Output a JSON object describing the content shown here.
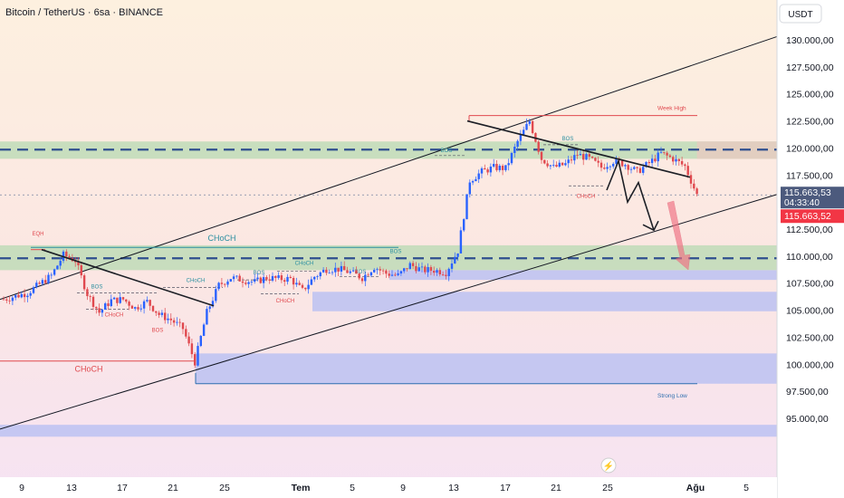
{
  "header": {
    "title": "Bitcoin / TetherUS · 6sa · BINANCE"
  },
  "axis": {
    "currency": "USDT",
    "price_ticks": [
      "130.000,00",
      "127.500,00",
      "125.000,00",
      "122.500,00",
      "120.000,00",
      "117.500,00",
      "115.000,00",
      "112.500,00",
      "110.000,00",
      "107.500,00",
      "105.000,00",
      "102.500,00",
      "100.000,00",
      "97.500,00",
      "95.000,00"
    ],
    "price_tick_values": [
      130000,
      127500,
      125000,
      122500,
      120000,
      117500,
      115000,
      112500,
      110000,
      107500,
      105000,
      102500,
      100000,
      97500,
      95000
    ],
    "date_ticks": [
      "9",
      "13",
      "17",
      "21",
      "25",
      "Tem",
      "5",
      "9",
      "13",
      "17",
      "21",
      "25",
      "Ağu",
      "5"
    ],
    "current_price": "115.663,53",
    "countdown": "04:33:40",
    "last_price_2": "115.663,52"
  },
  "annotations": {
    "week_high": "Week High",
    "strong_low": "Strong Low",
    "eqh": "EQH",
    "choch": "CHoCH",
    "bos": "BOS"
  },
  "colors": {
    "bull": "#2962ff",
    "bear": "#e0494f",
    "demand_zone": "#b8bff2",
    "supply_green": "#b7d9b1",
    "channel": "#131722",
    "arrow_pink": "#f06f82",
    "price_badge": "#f23645"
  },
  "chart_data": {
    "type": "candlestick",
    "title": "Bitcoin / TetherUS · 6sa · BINANCE",
    "y_unit": "USDT",
    "ylim": [
      93500,
      132000
    ],
    "x_ticks": [
      "9",
      "13",
      "17",
      "21",
      "25",
      "Tem",
      "5",
      "9",
      "13",
      "17",
      "21",
      "25",
      "Ağu",
      "5"
    ],
    "close_path": [
      [
        0,
        106000
      ],
      [
        4,
        106600
      ],
      [
        8,
        108200
      ],
      [
        10,
        110100
      ],
      [
        12,
        109600
      ],
      [
        14,
        106500
      ],
      [
        16,
        104800
      ],
      [
        18,
        105900
      ],
      [
        20,
        106000
      ],
      [
        22,
        105200
      ],
      [
        24,
        105800
      ],
      [
        26,
        104600
      ],
      [
        28,
        104100
      ],
      [
        30,
        103300
      ],
      [
        32,
        100200
      ],
      [
        34,
        104800
      ],
      [
        36,
        107300
      ],
      [
        38,
        108000
      ],
      [
        40,
        107800
      ],
      [
        42,
        107600
      ],
      [
        44,
        108000
      ],
      [
        46,
        107900
      ],
      [
        48,
        107900
      ],
      [
        50,
        106800
      ],
      [
        52,
        108100
      ],
      [
        54,
        108800
      ],
      [
        56,
        108800
      ],
      [
        58,
        108500
      ],
      [
        60,
        108000
      ],
      [
        62,
        109000
      ],
      [
        64,
        108400
      ],
      [
        66,
        108200
      ],
      [
        68,
        109200
      ],
      [
        70,
        108700
      ],
      [
        72,
        108700
      ],
      [
        74,
        108500
      ],
      [
        76,
        110500
      ],
      [
        78,
        117000
      ],
      [
        80,
        117800
      ],
      [
        82,
        118200
      ],
      [
        84,
        118100
      ],
      [
        86,
        120600
      ],
      [
        88,
        122500
      ],
      [
        90,
        119000
      ],
      [
        92,
        118200
      ],
      [
        94,
        118500
      ],
      [
        96,
        119400
      ],
      [
        98,
        119000
      ],
      [
        100,
        118200
      ],
      [
        102,
        118800
      ],
      [
        104,
        118500
      ],
      [
        106,
        117800
      ],
      [
        108,
        118600
      ],
      [
        110,
        119500
      ],
      [
        112,
        119000
      ],
      [
        114,
        118300
      ],
      [
        116,
        115663.53
      ]
    ],
    "key_levels": {
      "week_high": 123000,
      "strong_low": 98200,
      "weekly_zone_top_green": [
        119000,
        120600
      ],
      "mid_zone_green": [
        108700,
        111000
      ],
      "demand_zone_blue": [
        98200,
        101000
      ],
      "current_price": 115663.53
    }
  }
}
